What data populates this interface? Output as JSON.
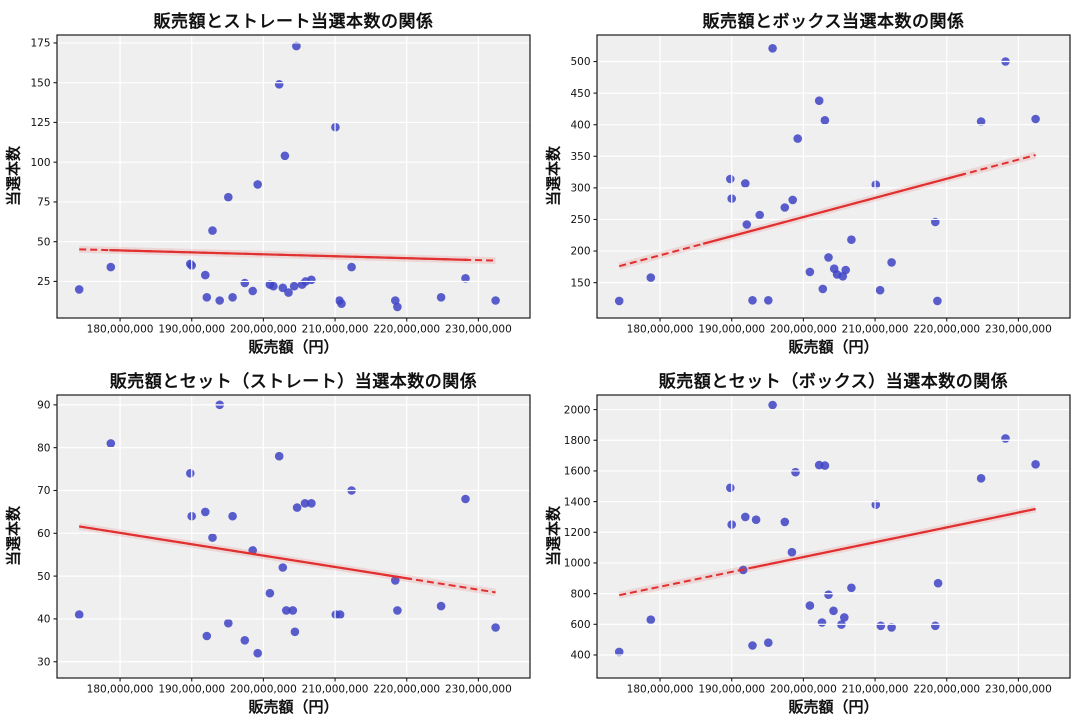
{
  "figure": {
    "background": "#ffffff",
    "xlabel": "販売額（円）",
    "ylabel": "当選本数"
  },
  "style": {
    "axes_background": "#efefef",
    "grid_color": "#ffffff",
    "spine_color": "#1a1a1a",
    "tick_color": "#1a1a1a",
    "tick_label_color": "#111111",
    "dot_color": "#3d43c4",
    "dot_opacity": 0.85,
    "trend_color": "#e03030",
    "trend_band_color": "rgba(224,48,48,0.13)"
  },
  "chart_data": [
    {
      "type": "scatter",
      "title": "販売額とストレート当選本数の関係",
      "xlabel": "販売額（円）",
      "ylabel": "当選本数",
      "xlim": [
        171200000,
        237200000
      ],
      "ylim": [
        2,
        180
      ],
      "grid": true,
      "legend": "none",
      "xticks": [
        {
          "value": 180000000,
          "label": "180,000,000"
        },
        {
          "value": 190000000,
          "label": "190,000,000"
        },
        {
          "value": 200000000,
          "label": "200,000,000"
        },
        {
          "value": 210000000,
          "label": "210,000,000"
        },
        {
          "value": 220000000,
          "label": "220,000,000"
        },
        {
          "value": 230000000,
          "label": "230,000,000"
        }
      ],
      "yticks": [
        25,
        50,
        75,
        100,
        125,
        150,
        175
      ],
      "points": [
        [
          174300000,
          20
        ],
        [
          178700000,
          34
        ],
        [
          189800000,
          36
        ],
        [
          190000000,
          35
        ],
        [
          191900000,
          29
        ],
        [
          192100000,
          15
        ],
        [
          192900000,
          57
        ],
        [
          193900000,
          13
        ],
        [
          195100000,
          78
        ],
        [
          195700000,
          15
        ],
        [
          197400000,
          24
        ],
        [
          198500000,
          19
        ],
        [
          199200000,
          86
        ],
        [
          200900000,
          23
        ],
        [
          201400000,
          22
        ],
        [
          202200000,
          149
        ],
        [
          202700000,
          21
        ],
        [
          203000000,
          104
        ],
        [
          203500000,
          18
        ],
        [
          204300000,
          22
        ],
        [
          204600000,
          173
        ],
        [
          205400000,
          23
        ],
        [
          205900000,
          25
        ],
        [
          206700000,
          26
        ],
        [
          210050000,
          122
        ],
        [
          210600000,
          13
        ],
        [
          210900000,
          11
        ],
        [
          212300000,
          34
        ],
        [
          218400000,
          13
        ],
        [
          218700000,
          9
        ],
        [
          224800000,
          15
        ],
        [
          228200000,
          27
        ],
        [
          232400000,
          13
        ]
      ],
      "trend": {
        "x1": 174300000,
        "y1": 45.2,
        "x2": 232400000,
        "y2": 38.1,
        "solid_from": 178500000,
        "solid_to": 228500000
      }
    },
    {
      "type": "scatter",
      "title": "販売額とボックス当選本数の関係",
      "xlabel": "販売額（円）",
      "ylabel": "当選本数",
      "xlim": [
        171200000,
        237200000
      ],
      "ylim": [
        94,
        542
      ],
      "grid": true,
      "legend": "none",
      "xticks": [
        {
          "value": 180000000,
          "label": "180,000,000"
        },
        {
          "value": 190000000,
          "label": "190,000,000"
        },
        {
          "value": 200000000,
          "label": "200,000,000"
        },
        {
          "value": 210000000,
          "label": "210,000,000"
        },
        {
          "value": 220000000,
          "label": "220,000,000"
        },
        {
          "value": 230000000,
          "label": "230,000,000"
        }
      ],
      "yticks": [
        150,
        200,
        250,
        300,
        350,
        400,
        450,
        500
      ],
      "points": [
        [
          174300000,
          121
        ],
        [
          178700000,
          158
        ],
        [
          189800000,
          314
        ],
        [
          190000000,
          283
        ],
        [
          191900000,
          307
        ],
        [
          192100000,
          242
        ],
        [
          192900000,
          122
        ],
        [
          193900000,
          257
        ],
        [
          195100000,
          122
        ],
        [
          195700000,
          521
        ],
        [
          197400000,
          269
        ],
        [
          198500000,
          281
        ],
        [
          199200000,
          378
        ],
        [
          200900000,
          167
        ],
        [
          202200000,
          438
        ],
        [
          202700000,
          140
        ],
        [
          203000000,
          407
        ],
        [
          203500000,
          190
        ],
        [
          204300000,
          172
        ],
        [
          204700000,
          163
        ],
        [
          205500000,
          160
        ],
        [
          205900000,
          170
        ],
        [
          206700000,
          218
        ],
        [
          210100000,
          305
        ],
        [
          210700000,
          138
        ],
        [
          212300000,
          182
        ],
        [
          218400000,
          246
        ],
        [
          218700000,
          121
        ],
        [
          224800000,
          405
        ],
        [
          228200000,
          500
        ],
        [
          232400000,
          409
        ]
      ],
      "trend": {
        "x1": 174300000,
        "y1": 176,
        "x2": 232400000,
        "y2": 352,
        "solid_from": 186000000,
        "solid_to": 222500000
      }
    },
    {
      "type": "scatter",
      "title": "販売額とセット（ストレート）当選本数の関係",
      "xlabel": "販売額（円）",
      "ylabel": "当選本数",
      "xlim": [
        171200000,
        237200000
      ],
      "ylim": [
        26.2,
        92.3
      ],
      "grid": true,
      "legend": "none",
      "xticks": [
        {
          "value": 180000000,
          "label": "180,000,000"
        },
        {
          "value": 190000000,
          "label": "190,000,000"
        },
        {
          "value": 200000000,
          "label": "200,000,000"
        },
        {
          "value": 210000000,
          "label": "210,000,000"
        },
        {
          "value": 220000000,
          "label": "220,000,000"
        },
        {
          "value": 230000000,
          "label": "230,000,000"
        }
      ],
      "yticks": [
        30,
        40,
        50,
        60,
        70,
        80,
        90
      ],
      "points": [
        [
          174300000,
          41
        ],
        [
          178700000,
          81
        ],
        [
          189800000,
          74
        ],
        [
          190000000,
          64
        ],
        [
          191900000,
          65
        ],
        [
          192100000,
          36
        ],
        [
          192900000,
          59
        ],
        [
          193900000,
          90
        ],
        [
          195100000,
          39
        ],
        [
          195700000,
          64
        ],
        [
          197400000,
          35
        ],
        [
          198500000,
          56
        ],
        [
          199200000,
          32
        ],
        [
          200900000,
          46
        ],
        [
          202200000,
          78
        ],
        [
          202700000,
          52
        ],
        [
          203200000,
          42
        ],
        [
          204100000,
          42
        ],
        [
          204400000,
          37
        ],
        [
          204700000,
          66
        ],
        [
          205800000,
          67
        ],
        [
          206700000,
          67
        ],
        [
          210100000,
          41
        ],
        [
          210700000,
          41
        ],
        [
          212300000,
          70
        ],
        [
          218400000,
          49
        ],
        [
          218700000,
          42
        ],
        [
          224800000,
          43
        ],
        [
          228200000,
          68
        ],
        [
          232400000,
          38
        ]
      ],
      "trend": {
        "x1": 174300000,
        "y1": 61.6,
        "x2": 232400000,
        "y2": 46.2,
        "solid_from": 174300000,
        "solid_to": 220500000
      }
    },
    {
      "type": "scatter",
      "title": "販売額とセット（ボックス）当選本数の関係",
      "xlabel": "販売額（円）",
      "ylabel": "当選本数",
      "xlim": [
        171200000,
        237200000
      ],
      "ylim": [
        250,
        2095
      ],
      "grid": true,
      "legend": "none",
      "xticks": [
        {
          "value": 180000000,
          "label": "180,000,000"
        },
        {
          "value": 190000000,
          "label": "190,000,000"
        },
        {
          "value": 200000000,
          "label": "200,000,000"
        },
        {
          "value": 210000000,
          "label": "210,000,000"
        },
        {
          "value": 220000000,
          "label": "220,000,000"
        },
        {
          "value": 230000000,
          "label": "230,000,000"
        }
      ],
      "yticks": [
        400,
        600,
        800,
        1000,
        1200,
        1400,
        1600,
        1800,
        2000
      ],
      "points": [
        [
          174300000,
          420
        ],
        [
          178700000,
          630
        ],
        [
          189800000,
          1490
        ],
        [
          190000000,
          1250
        ],
        [
          191600000,
          955
        ],
        [
          191900000,
          1300
        ],
        [
          192900000,
          462
        ],
        [
          193400000,
          1282
        ],
        [
          195100000,
          480
        ],
        [
          195700000,
          2030
        ],
        [
          197400000,
          1268
        ],
        [
          198400000,
          1070
        ],
        [
          198900000,
          1592
        ],
        [
          200900000,
          722
        ],
        [
          202200000,
          1638
        ],
        [
          202600000,
          612
        ],
        [
          203000000,
          1635
        ],
        [
          203500000,
          793
        ],
        [
          204200000,
          688
        ],
        [
          205300000,
          598
        ],
        [
          205700000,
          645
        ],
        [
          206700000,
          838
        ],
        [
          210100000,
          1380
        ],
        [
          210800000,
          590
        ],
        [
          212300000,
          580
        ],
        [
          218400000,
          590
        ],
        [
          218800000,
          868
        ],
        [
          224800000,
          1552
        ],
        [
          228200000,
          1812
        ],
        [
          232400000,
          1643
        ]
      ],
      "trend": {
        "x1": 174300000,
        "y1": 790,
        "x2": 232400000,
        "y2": 1352,
        "solid_from": 193000000,
        "solid_to": 232400000
      }
    }
  ]
}
